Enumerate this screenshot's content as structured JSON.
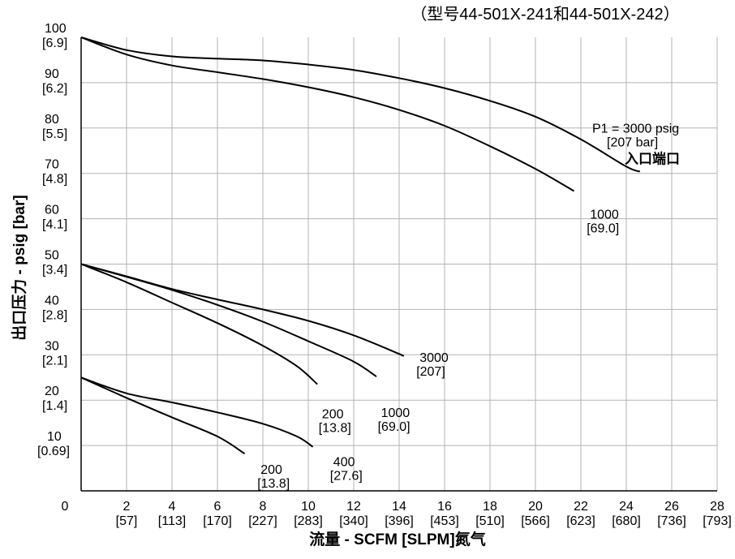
{
  "chart_data": {
    "type": "line",
    "title": "",
    "subtitle": "（型号44-501X-241和44-501X-242）",
    "xlabel": "流量 - SCFM [SLPM]氮气",
    "ylabel": "出口压力 - psig [bar]",
    "xlim": [
      0,
      28
    ],
    "ylim": [
      0,
      100
    ],
    "grid": true,
    "x_ticks": [
      {
        "value": 0,
        "label": "0",
        "sub": ""
      },
      {
        "value": 2,
        "label": "2",
        "sub": "[57]"
      },
      {
        "value": 4,
        "label": "4",
        "sub": "[113]"
      },
      {
        "value": 6,
        "label": "6",
        "sub": "[170]"
      },
      {
        "value": 8,
        "label": "8",
        "sub": "[227]"
      },
      {
        "value": 10,
        "label": "10",
        "sub": "[283]"
      },
      {
        "value": 12,
        "label": "12",
        "sub": "[340]"
      },
      {
        "value": 14,
        "label": "14",
        "sub": "[396]"
      },
      {
        "value": 16,
        "label": "16",
        "sub": "[453]"
      },
      {
        "value": 18,
        "label": "18",
        "sub": "[510]"
      },
      {
        "value": 20,
        "label": "20",
        "sub": "[566]"
      },
      {
        "value": 22,
        "label": "22",
        "sub": "[623]"
      },
      {
        "value": 24,
        "label": "24",
        "sub": "[680]"
      },
      {
        "value": 26,
        "label": "26",
        "sub": "[736]"
      },
      {
        "value": 28,
        "label": "28",
        "sub": "[793]"
      }
    ],
    "y_ticks": [
      {
        "value": 10,
        "label": "10",
        "sub": "[0.69]"
      },
      {
        "value": 20,
        "label": "20",
        "sub": "[1.4]"
      },
      {
        "value": 30,
        "label": "30",
        "sub": "[2.1]"
      },
      {
        "value": 40,
        "label": "40",
        "sub": "[2.8]"
      },
      {
        "value": 50,
        "label": "50",
        "sub": "[3.4]"
      },
      {
        "value": 60,
        "label": "60",
        "sub": "[4.1]"
      },
      {
        "value": 70,
        "label": "70",
        "sub": "[4.8]"
      },
      {
        "value": 80,
        "label": "80",
        "sub": "[5.5]"
      },
      {
        "value": 90,
        "label": "90",
        "sub": "[6.2]"
      },
      {
        "value": 100,
        "label": "100",
        "sub": "[6.9]"
      }
    ],
    "series": [
      {
        "group": "setting-100",
        "label_lines": [
          "P1 = 3000 psig",
          "[207 bar]",
          "入口端口"
        ],
        "label_at": [
          22.5,
          79
        ],
        "points": [
          [
            0,
            100
          ],
          [
            2,
            97.2
          ],
          [
            4,
            95.8
          ],
          [
            6,
            95.3
          ],
          [
            8,
            94.9
          ],
          [
            10,
            94
          ],
          [
            12,
            92.8
          ],
          [
            14,
            91
          ],
          [
            16,
            88.8
          ],
          [
            18,
            86
          ],
          [
            20,
            82.5
          ],
          [
            22,
            77.5
          ],
          [
            24,
            71.5
          ],
          [
            24.6,
            70.4
          ]
        ]
      },
      {
        "group": "setting-100",
        "label_lines": [
          "1000",
          "[69.0]"
        ],
        "label_at": [
          22.4,
          60
        ],
        "points": [
          [
            0,
            100
          ],
          [
            2,
            96.2
          ],
          [
            4,
            93.8
          ],
          [
            6,
            92.3
          ],
          [
            8,
            90.8
          ],
          [
            10,
            89
          ],
          [
            12,
            86.8
          ],
          [
            14,
            84
          ],
          [
            16,
            80.5
          ],
          [
            18,
            76
          ],
          [
            20,
            71
          ],
          [
            21.7,
            66.1
          ]
        ]
      },
      {
        "group": "setting-50",
        "label_lines": [
          "3000",
          "[207]"
        ],
        "label_at": [
          14.9,
          28.4
        ],
        "points": [
          [
            0,
            50
          ],
          [
            2,
            47.3
          ],
          [
            4,
            44.5
          ],
          [
            6,
            42.2
          ],
          [
            8,
            40
          ],
          [
            10,
            37.5
          ],
          [
            12,
            34.3
          ],
          [
            14,
            30.2
          ],
          [
            14.1,
            29.9
          ]
        ]
      },
      {
        "group": "setting-50",
        "label_lines": [
          "1000",
          "[69.0]"
        ],
        "label_at": [
          13.2,
          16.3
        ],
        "points": [
          [
            0,
            50
          ],
          [
            2,
            47.2
          ],
          [
            4,
            44.3
          ],
          [
            6,
            41
          ],
          [
            8,
            37.3
          ],
          [
            10,
            33
          ],
          [
            12,
            28.5
          ],
          [
            13,
            25.2
          ]
        ]
      },
      {
        "group": "setting-50",
        "label_lines": [
          "200",
          "[13.8]"
        ],
        "label_at": [
          10.6,
          16.0
        ],
        "points": [
          [
            0,
            50
          ],
          [
            2,
            46
          ],
          [
            4,
            41.5
          ],
          [
            6,
            37
          ],
          [
            8,
            32
          ],
          [
            9.5,
            27.5
          ],
          [
            10.4,
            23.5
          ]
        ]
      },
      {
        "group": "setting-25",
        "label_lines": [
          "400",
          "[27.6]"
        ],
        "label_at": [
          11.1,
          5.5
        ],
        "points": [
          [
            0,
            25
          ],
          [
            2,
            21.5
          ],
          [
            4,
            19.5
          ],
          [
            6,
            17.3
          ],
          [
            8,
            14.8
          ],
          [
            9.5,
            12
          ],
          [
            10.2,
            9.7
          ]
        ]
      },
      {
        "group": "setting-25",
        "label_lines": [
          "200",
          "[13.8]"
        ],
        "label_at": [
          7.9,
          3.8
        ],
        "points": [
          [
            0,
            25
          ],
          [
            2,
            20.5
          ],
          [
            4,
            16.2
          ],
          [
            6,
            12
          ],
          [
            7.2,
            8.2
          ]
        ]
      }
    ]
  }
}
